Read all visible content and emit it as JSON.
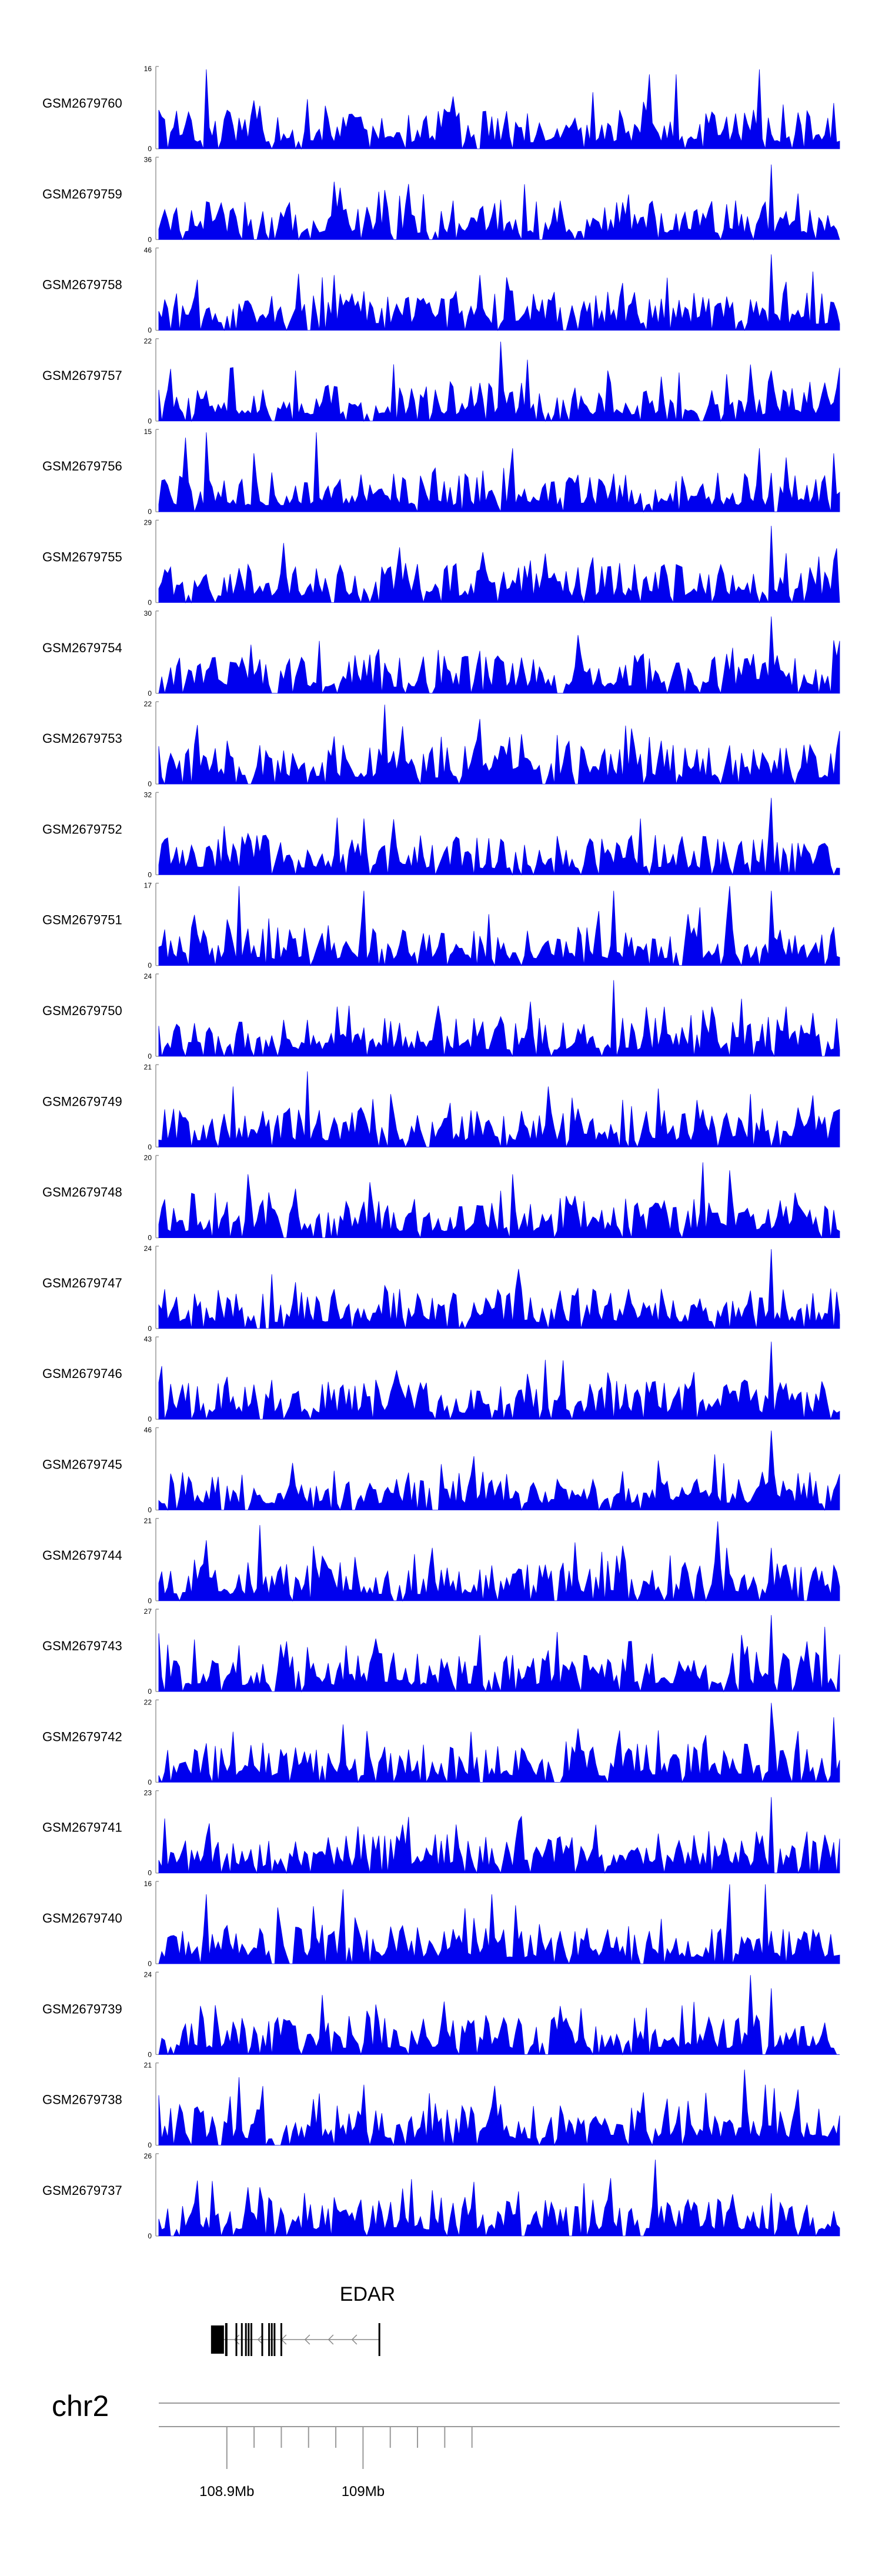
{
  "chart_data": {
    "type": "area",
    "title": "",
    "xlabel": "",
    "ylabel": "",
    "chromosome": "chr2",
    "x_range": [
      108.85,
      109.35
    ],
    "x_ticks": [
      {
        "value": 108.9,
        "label": "108.9Mb"
      },
      {
        "value": 109.0,
        "label": "109Mb"
      }
    ],
    "minor_ticks": [
      108.92,
      108.94,
      108.96,
      108.98,
      109.02,
      109.04,
      109.06,
      109.08
    ],
    "series_color": "#0000ee",
    "tracks": [
      {
        "name": "GSM2679760",
        "ylim": [
          0,
          16
        ],
        "peaks": [
          [
            0.07,
            16
          ],
          [
            0.22,
            10
          ],
          [
            0.42,
            8
          ],
          [
            0.72,
            15
          ],
          [
            0.76,
            15
          ],
          [
            0.88,
            16
          ]
        ]
      },
      {
        "name": "GSM2679759",
        "ylim": [
          0,
          36
        ],
        "peaks": [
          [
            0.26,
            14
          ],
          [
            0.5,
            18
          ],
          [
            0.72,
            16
          ],
          [
            0.9,
            34
          ],
          [
            0.97,
            10
          ]
        ]
      },
      {
        "name": "GSM2679758",
        "ylim": [
          0,
          46
        ],
        "peaks": [
          [
            0.28,
            16
          ],
          [
            0.46,
            14
          ],
          [
            0.72,
            18
          ],
          [
            0.9,
            44
          ],
          [
            0.96,
            34
          ]
        ]
      },
      {
        "name": "GSM2679757",
        "ylim": [
          0,
          22
        ],
        "peaks": [
          [
            0.2,
            14
          ],
          [
            0.5,
            22
          ],
          [
            0.54,
            17
          ],
          [
            0.66,
            14
          ],
          [
            0.9,
            14
          ]
        ]
      },
      {
        "name": "GSM2679756",
        "ylim": [
          0,
          15
        ],
        "peaks": [
          [
            0.04,
            14
          ],
          [
            0.07,
            15
          ],
          [
            0.23,
            15
          ],
          [
            0.52,
            12
          ],
          [
            0.88,
            12
          ]
        ]
      },
      {
        "name": "GSM2679755",
        "ylim": [
          0,
          29
        ],
        "peaks": [
          [
            0.2,
            13
          ],
          [
            0.42,
            12
          ],
          [
            0.7,
            14
          ],
          [
            0.9,
            28
          ],
          [
            0.92,
            18
          ]
        ]
      },
      {
        "name": "GSM2679754",
        "ylim": [
          0,
          30
        ],
        "peaks": [
          [
            0.28,
            12
          ],
          [
            0.56,
            10
          ],
          [
            0.86,
            13
          ],
          [
            0.9,
            29
          ],
          [
            0.99,
            20
          ]
        ]
      },
      {
        "name": "GSM2679753",
        "ylim": [
          0,
          22
        ],
        "peaks": [
          [
            0.1,
            12
          ],
          [
            0.33,
            22
          ],
          [
            0.47,
            18
          ],
          [
            0.74,
            12
          ],
          [
            0.92,
            10
          ]
        ]
      },
      {
        "name": "GSM2679752",
        "ylim": [
          0,
          32
        ],
        "peaks": [
          [
            0.22,
            10
          ],
          [
            0.4,
            12
          ],
          [
            0.6,
            10
          ],
          [
            0.9,
            31
          ],
          [
            0.95,
            10
          ]
        ]
      },
      {
        "name": "GSM2679751",
        "ylim": [
          0,
          17
        ],
        "peaks": [
          [
            0.12,
            17
          ],
          [
            0.3,
            16
          ],
          [
            0.67,
            16
          ],
          [
            0.84,
            17
          ],
          [
            0.9,
            16
          ]
        ]
      },
      {
        "name": "GSM2679750",
        "ylim": [
          0,
          24
        ],
        "peaks": [
          [
            0.26,
            15
          ],
          [
            0.5,
            12
          ],
          [
            0.67,
            23
          ],
          [
            0.8,
            14
          ],
          [
            0.92,
            15
          ]
        ]
      },
      {
        "name": "GSM2679749",
        "ylim": [
          0,
          21
        ],
        "peaks": [
          [
            0.11,
            16
          ],
          [
            0.22,
            20
          ],
          [
            0.34,
            14
          ],
          [
            0.57,
            16
          ],
          [
            0.87,
            14
          ]
        ]
      },
      {
        "name": "GSM2679748",
        "ylim": [
          0,
          20
        ],
        "peaks": [
          [
            0.13,
            16
          ],
          [
            0.31,
            14
          ],
          [
            0.52,
            16
          ],
          [
            0.8,
            19
          ],
          [
            0.84,
            17
          ]
        ]
      },
      {
        "name": "GSM2679747",
        "ylim": [
          0,
          24
        ],
        "peaks": [
          [
            0.2,
            14
          ],
          [
            0.33,
            13
          ],
          [
            0.53,
            18
          ],
          [
            0.74,
            12
          ],
          [
            0.9,
            24
          ]
        ]
      },
      {
        "name": "GSM2679746",
        "ylim": [
          0,
          43
        ],
        "peaks": [
          [
            0.2,
            14
          ],
          [
            0.46,
            16
          ],
          [
            0.7,
            14
          ],
          [
            0.9,
            42
          ],
          [
            0.93,
            14
          ]
        ]
      },
      {
        "name": "GSM2679745",
        "ylim": [
          0,
          46
        ],
        "peaks": [
          [
            0.2,
            14
          ],
          [
            0.34,
            10
          ],
          [
            0.6,
            12
          ],
          [
            0.88,
            14
          ],
          [
            0.9,
            46
          ]
        ]
      },
      {
        "name": "GSM2679744",
        "ylim": [
          0,
          21
        ],
        "peaks": [
          [
            0.07,
            16
          ],
          [
            0.15,
            20
          ],
          [
            0.4,
            14
          ],
          [
            0.82,
            21
          ],
          [
            0.9,
            14
          ]
        ]
      },
      {
        "name": "GSM2679743",
        "ylim": [
          0,
          27
        ],
        "peaks": [
          [
            0.18,
            16
          ],
          [
            0.32,
            18
          ],
          [
            0.57,
            14
          ],
          [
            0.9,
            26
          ],
          [
            0.98,
            22
          ]
        ]
      },
      {
        "name": "GSM2679742",
        "ylim": [
          0,
          22
        ],
        "peaks": [
          [
            0.11,
            14
          ],
          [
            0.27,
            16
          ],
          [
            0.46,
            14
          ],
          [
            0.9,
            22
          ],
          [
            0.99,
            18
          ]
        ]
      },
      {
        "name": "GSM2679741",
        "ylim": [
          0,
          23
        ],
        "peaks": [
          [
            0.36,
            14
          ],
          [
            0.53,
            15
          ],
          [
            0.64,
            14
          ],
          [
            0.9,
            22
          ],
          [
            0.95,
            12
          ]
        ]
      },
      {
        "name": "GSM2679740",
        "ylim": [
          0,
          16
        ],
        "peaks": [
          [
            0.07,
            14
          ],
          [
            0.27,
            15
          ],
          [
            0.49,
            14
          ],
          [
            0.84,
            16
          ],
          [
            0.89,
            16
          ]
        ]
      },
      {
        "name": "GSM2679739",
        "ylim": [
          0,
          24
        ],
        "peaks": [
          [
            0.24,
            18
          ],
          [
            0.42,
            16
          ],
          [
            0.62,
            14
          ],
          [
            0.87,
            24
          ],
          [
            0.9,
            20
          ]
        ]
      },
      {
        "name": "GSM2679738",
        "ylim": [
          0,
          21
        ],
        "peaks": [
          [
            0.12,
            18
          ],
          [
            0.3,
            16
          ],
          [
            0.71,
            14
          ],
          [
            0.86,
            20
          ],
          [
            0.89,
            16
          ]
        ]
      },
      {
        "name": "GSM2679737",
        "ylim": [
          0,
          26
        ],
        "peaks": [
          [
            0.08,
            18
          ],
          [
            0.15,
            16
          ],
          [
            0.4,
            15
          ],
          [
            0.73,
            25
          ],
          [
            0.9,
            14
          ]
        ]
      }
    ],
    "gene": {
      "name": "EDAR",
      "start": 108.897,
      "end": 109.012,
      "strand": "-",
      "exons": [
        108.897,
        108.907,
        108.911,
        108.914,
        108.916,
        108.918,
        108.926,
        108.931,
        108.933,
        108.935,
        108.94,
        109.012
      ]
    }
  }
}
